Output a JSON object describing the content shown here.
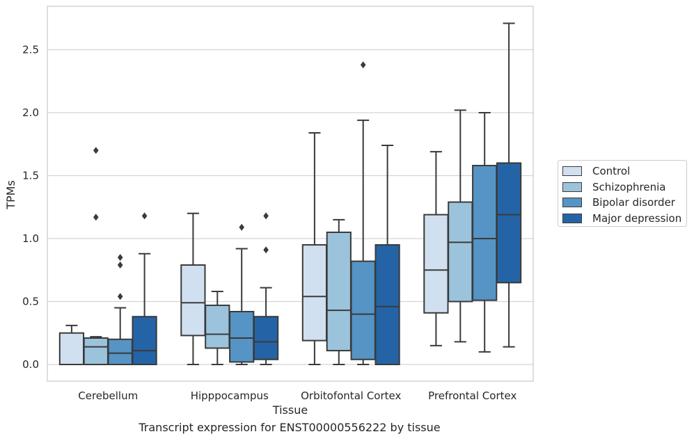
{
  "caption": "Transcript expression for ENST00000556222 by tissue",
  "chart_data": {
    "type": "boxplot",
    "xlabel": "Tissue",
    "ylabel": "TPMs",
    "ylim": [
      -0.13,
      2.85
    ],
    "yticks": [
      0.0,
      0.5,
      1.0,
      1.5,
      2.0,
      2.5
    ],
    "ytick_labels": [
      "0.0",
      "0.5",
      "1.0",
      "1.5",
      "2.0",
      "2.5"
    ],
    "grid": "horizontal",
    "legend_position": "right",
    "categories": [
      "Cerebellum",
      "Hipppocampus",
      "Orbitofontal Cortex",
      "Prefrontal Cortex"
    ],
    "series": [
      {
        "name": "Control",
        "color": "#d1e0f0",
        "boxes": [
          {
            "whislo": 0.0,
            "q1": 0.0,
            "med": 0.0,
            "q3": 0.25,
            "whishi": 0.31,
            "fliers": []
          },
          {
            "whislo": 0.0,
            "q1": 0.23,
            "med": 0.49,
            "q3": 0.79,
            "whishi": 1.2,
            "fliers": []
          },
          {
            "whislo": 0.0,
            "q1": 0.19,
            "med": 0.54,
            "q3": 0.95,
            "whishi": 1.84,
            "fliers": []
          },
          {
            "whislo": 0.15,
            "q1": 0.41,
            "med": 0.75,
            "q3": 1.19,
            "whishi": 1.69,
            "fliers": []
          }
        ]
      },
      {
        "name": "Schizophrenia",
        "color": "#9cc3dc",
        "boxes": [
          {
            "whislo": 0.0,
            "q1": 0.0,
            "med": 0.14,
            "q3": 0.21,
            "whishi": 0.22,
            "fliers": [
              1.7,
              1.17
            ]
          },
          {
            "whislo": 0.0,
            "q1": 0.13,
            "med": 0.24,
            "q3": 0.47,
            "whishi": 0.58,
            "fliers": []
          },
          {
            "whislo": 0.0,
            "q1": 0.11,
            "med": 0.43,
            "q3": 1.05,
            "whishi": 1.15,
            "fliers": []
          },
          {
            "whislo": 0.18,
            "q1": 0.5,
            "med": 0.97,
            "q3": 1.29,
            "whishi": 2.02,
            "fliers": []
          }
        ]
      },
      {
        "name": "Bipolar disorder",
        "color": "#5594c5",
        "boxes": [
          {
            "whislo": 0.0,
            "q1": 0.0,
            "med": 0.09,
            "q3": 0.2,
            "whishi": 0.45,
            "fliers": [
              0.85,
              0.79,
              0.54
            ]
          },
          {
            "whislo": 0.0,
            "q1": 0.02,
            "med": 0.21,
            "q3": 0.42,
            "whishi": 0.92,
            "fliers": [
              1.09
            ]
          },
          {
            "whislo": 0.0,
            "q1": 0.04,
            "med": 0.4,
            "q3": 0.82,
            "whishi": 1.94,
            "fliers": [
              2.38
            ]
          },
          {
            "whislo": 0.1,
            "q1": 0.51,
            "med": 1.0,
            "q3": 1.58,
            "whishi": 2.0,
            "fliers": []
          }
        ]
      },
      {
        "name": "Major depression",
        "color": "#2464a6",
        "boxes": [
          {
            "whislo": 0.0,
            "q1": 0.0,
            "med": 0.11,
            "q3": 0.38,
            "whishi": 0.88,
            "fliers": [
              1.18
            ]
          },
          {
            "whislo": 0.0,
            "q1": 0.04,
            "med": 0.18,
            "q3": 0.38,
            "whishi": 0.61,
            "fliers": [
              1.18,
              0.91
            ]
          },
          {
            "whislo": 0.0,
            "q1": 0.0,
            "med": 0.46,
            "q3": 0.95,
            "whishi": 1.74,
            "fliers": []
          },
          {
            "whislo": 0.14,
            "q1": 0.65,
            "med": 1.19,
            "q3": 1.6,
            "whishi": 2.71,
            "fliers": []
          }
        ]
      }
    ]
  }
}
